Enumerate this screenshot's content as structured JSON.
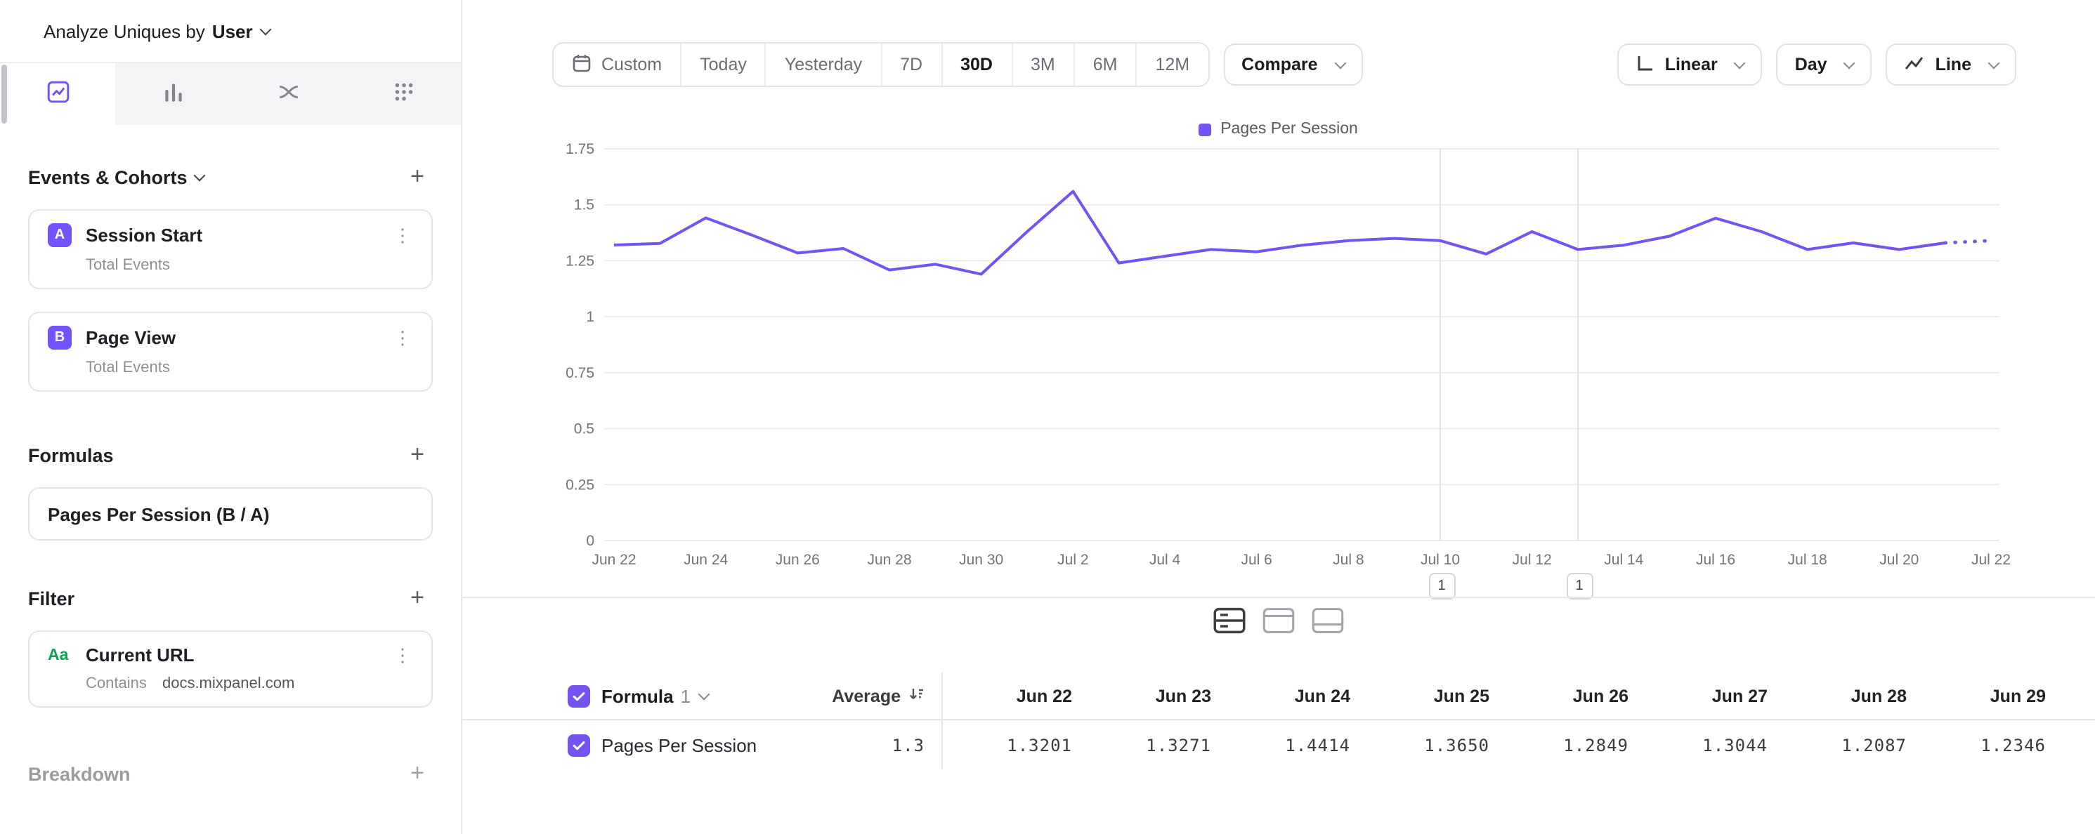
{
  "colors": {
    "accent": "#7453f0",
    "badge": "#7352ff",
    "filter_icon_green": "#08a45a"
  },
  "icons": {
    "plus": "+",
    "kebab": "⋮"
  },
  "sidebar": {
    "analyze": {
      "prefix": "Analyze Uniques by",
      "selection": "User"
    },
    "tabs": [
      {
        "name": "insights-chart"
      },
      {
        "name": "bar-chart"
      },
      {
        "name": "flows"
      },
      {
        "name": "retention-grid"
      }
    ],
    "sections": {
      "events": "Events & Cohorts",
      "formulas": "Formulas",
      "filter": "Filter",
      "breakdown": "Breakdown"
    },
    "events": [
      {
        "badge": "A",
        "title": "Session Start",
        "measure": "Total Events"
      },
      {
        "badge": "B",
        "title": "Page View",
        "measure": "Total Events"
      }
    ],
    "formulas": [
      {
        "title": "Pages Per Session (B / A)"
      }
    ],
    "filters": [
      {
        "icon": "Aa",
        "title": "Current URL",
        "operator": "Contains",
        "value": "docs.mixpanel.com"
      }
    ]
  },
  "toolbar": {
    "ranges": [
      "Custom",
      "Today",
      "Yesterday",
      "7D",
      "30D",
      "3M",
      "6M",
      "12M"
    ],
    "selected_range": "30D",
    "compare_label": "Compare",
    "scale_label": "Linear",
    "interval_label": "Day",
    "chart_type_label": "Line"
  },
  "chart_data": {
    "type": "line",
    "series_name": "Pages Per Session",
    "x": [
      "Jun 22",
      "Jun 23",
      "Jun 24",
      "Jun 25",
      "Jun 26",
      "Jun 27",
      "Jun 28",
      "Jun 29",
      "Jun 30",
      "Jul 1",
      "Jul 2",
      "Jul 3",
      "Jul 4",
      "Jul 5",
      "Jul 6",
      "Jul 7",
      "Jul 8",
      "Jul 9",
      "Jul 10",
      "Jul 11",
      "Jul 12",
      "Jul 13",
      "Jul 14",
      "Jul 15",
      "Jul 16",
      "Jul 17",
      "Jul 18",
      "Jul 19",
      "Jul 20",
      "Jul 21",
      "Jul 22"
    ],
    "values": [
      1.3201,
      1.3271,
      1.4414,
      1.365,
      1.2849,
      1.3044,
      1.2087,
      1.2346,
      1.19,
      1.38,
      1.56,
      1.24,
      1.27,
      1.3,
      1.29,
      1.32,
      1.34,
      1.35,
      1.34,
      1.28,
      1.38,
      1.3,
      1.32,
      1.36,
      1.44,
      1.38,
      1.3,
      1.33,
      1.3,
      1.33,
      1.34
    ],
    "ylim": [
      0,
      1.75
    ],
    "yticks": [
      0,
      0.25,
      0.5,
      0.75,
      1,
      1.25,
      1.5,
      1.75
    ],
    "xtick_every": 2,
    "dashed_from_index": 29,
    "annotations": [
      {
        "x": "Jul 10",
        "label": "1"
      },
      {
        "x": "Jul 13",
        "label": "1"
      }
    ],
    "line_color": "#7453f0",
    "legend_position": "top",
    "grid": "horizontal"
  },
  "table": {
    "formula_label": "Formula",
    "formula_number": "1",
    "average_label": "Average",
    "columns": [
      "Jun 22",
      "Jun 23",
      "Jun 24",
      "Jun 25",
      "Jun 26",
      "Jun 27",
      "Jun 28",
      "Jun 29"
    ],
    "rows": [
      {
        "label": "Pages Per Session",
        "average": "1.3",
        "values": [
          "1.3201",
          "1.3271",
          "1.4414",
          "1.3650",
          "1.2849",
          "1.3044",
          "1.2087",
          "1.2346"
        ]
      }
    ]
  }
}
